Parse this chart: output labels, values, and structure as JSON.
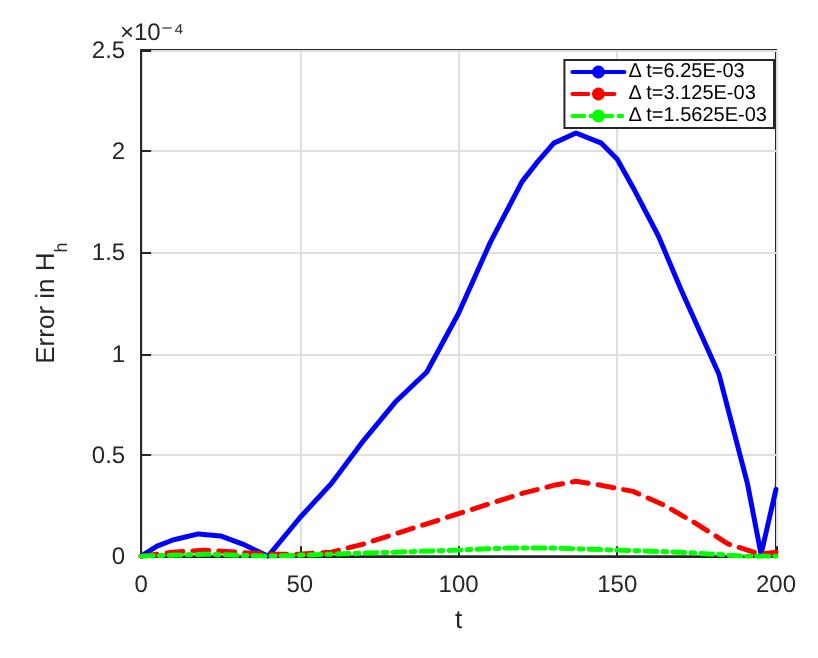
{
  "chart_data": {
    "type": "line",
    "xlabel": "t",
    "ylabel": "Error in H$_{h}$",
    "annotations": [
      "×10⁻⁴"
    ],
    "xlim": [
      0,
      200
    ],
    "xticks": [
      0,
      50,
      100,
      150,
      200
    ],
    "ylim": [
      0,
      2.5
    ],
    "yticks": [
      0,
      0.5,
      1,
      1.5,
      2,
      2.5
    ],
    "grid": true,
    "legend": "top right",
    "marker": "none",
    "series": [
      {
        "name": "Δ t=6.25E-03",
        "color": "#0000ff",
        "line_style": "solid",
        "x": [
          0,
          5,
          10,
          18,
          25,
          32,
          40,
          50,
          60,
          70,
          80,
          90,
          100,
          110,
          120,
          125,
          130,
          137,
          145,
          150,
          155,
          163,
          170,
          182,
          191,
          195.3,
          200
        ],
        "values": [
          0,
          0.05,
          0.08,
          0.11,
          0.1,
          0.06,
          0,
          0.19,
          0.36,
          0.57,
          0.76,
          0.91,
          1.2,
          1.55,
          1.85,
          1.95,
          2.04,
          2.09,
          2.04,
          1.96,
          1.82,
          1.58,
          1.32,
          0.9,
          0.36,
          0.01,
          0.33
        ]
      },
      {
        "name": "Δ t=3.125E-03",
        "color": "#ff0000",
        "line_style": "dashed",
        "x": [
          0,
          10,
          20,
          30,
          40,
          50,
          60,
          70,
          80,
          90,
          100,
          110,
          120,
          130,
          137,
          145,
          155,
          165,
          175,
          185,
          195,
          200
        ],
        "values": [
          0,
          0.02,
          0.03,
          0.02,
          0.01,
          0.01,
          0.02,
          0.06,
          0.11,
          0.16,
          0.21,
          0.26,
          0.31,
          0.35,
          0.37,
          0.35,
          0.32,
          0.25,
          0.16,
          0.06,
          0.01,
          0.02
        ]
      },
      {
        "name": "Δ t=1.5625E-03",
        "color": "#00ff00",
        "line_style": "dashdot",
        "x": [
          0,
          20,
          40,
          60,
          80,
          100,
          115,
          130,
          150,
          170,
          190,
          200
        ],
        "values": [
          0,
          0.01,
          0,
          0.01,
          0.02,
          0.03,
          0.04,
          0.04,
          0.03,
          0.02,
          0,
          0
        ]
      }
    ]
  }
}
